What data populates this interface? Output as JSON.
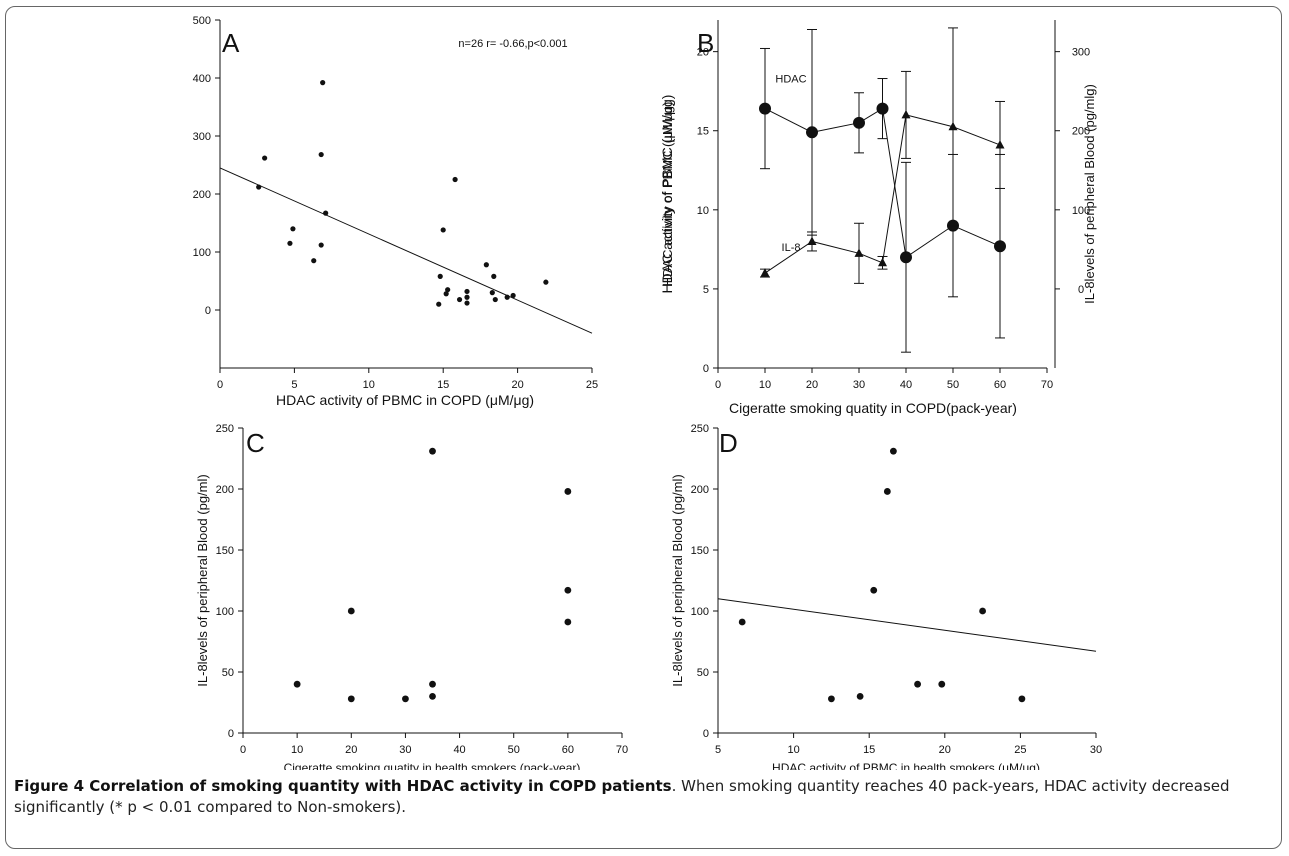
{
  "chart_data": [
    {
      "panel": "A",
      "type": "scatter",
      "annotation": "n=26 r= -0.66,p<0.001",
      "xlabel": "HDAC activity of PBMC  in COPD  (μM/μg)",
      "ylabel": "",
      "xlim": [
        0,
        25
      ],
      "ylim": [
        -100,
        500
      ],
      "xticks": [
        "0",
        "5",
        "10",
        "15",
        "20",
        "25"
      ],
      "yticks": [
        "0",
        "100",
        "200",
        "300",
        "400",
        "500"
      ],
      "ytick_values": [
        0,
        100,
        200,
        300,
        400,
        500
      ],
      "points": [
        [
          2.6,
          212
        ],
        [
          3.0,
          262
        ],
        [
          4.7,
          115
        ],
        [
          4.9,
          140
        ],
        [
          6.3,
          85
        ],
        [
          6.8,
          112
        ],
        [
          6.8,
          268
        ],
        [
          6.9,
          392
        ],
        [
          7.1,
          167
        ],
        [
          14.7,
          10
        ],
        [
          14.8,
          58
        ],
        [
          15.0,
          138
        ],
        [
          15.2,
          28
        ],
        [
          15.3,
          35
        ],
        [
          15.8,
          225
        ],
        [
          16.1,
          18
        ],
        [
          16.6,
          12
        ],
        [
          16.6,
          22
        ],
        [
          16.6,
          32
        ],
        [
          17.9,
          78
        ],
        [
          18.3,
          30
        ],
        [
          18.4,
          58
        ],
        [
          18.5,
          18
        ],
        [
          19.3,
          22
        ],
        [
          19.7,
          25
        ],
        [
          21.9,
          48
        ]
      ],
      "fit": [
        [
          0,
          245
        ],
        [
          25,
          -40
        ]
      ]
    },
    {
      "panel": "B",
      "type": "line",
      "xlabel": "Cigeratte smoking quatity in COPD(pack-year)",
      "ylabel": "HDAC activity of PBMC (μM/μg)",
      "ylabel_right": "IL-8levels of peripheral Blood (pg/mlg)",
      "xlim": [
        0,
        70
      ],
      "ylim": [
        0,
        22
      ],
      "ylim_right": [
        -100,
        340
      ],
      "xticks": [
        "0",
        "10",
        "20",
        "30",
        "40",
        "50",
        "60",
        "70"
      ],
      "yticks": [
        "0",
        "5",
        "10",
        "15",
        "20"
      ],
      "ytick_values": [
        0,
        5,
        10,
        15,
        20
      ],
      "yticks_right": [
        "0",
        "100",
        "200",
        "300"
      ],
      "ytick_values_right": [
        0,
        100,
        200,
        300
      ],
      "series": [
        {
          "name": "HDAC",
          "axis": "left",
          "marker": "circle",
          "points": [
            [
              10,
              16.4
            ],
            [
              20,
              14.9
            ],
            [
              30,
              15.5
            ],
            [
              35,
              16.4
            ],
            [
              40,
              7.0
            ],
            [
              50,
              9.0
            ],
            [
              60,
              7.7
            ]
          ],
          "errors": [
            3.8,
            6.5,
            1.9,
            1.9,
            6.0,
            4.5,
            5.8
          ]
        },
        {
          "name": "IL-8",
          "axis": "right",
          "marker": "triangle",
          "points": [
            [
              10,
              20
            ],
            [
              20,
              60
            ],
            [
              30,
              45
            ],
            [
              35,
              33
            ],
            [
              40,
              220
            ],
            [
              50,
              205
            ],
            [
              60,
              182
            ]
          ],
          "errors": [
            5,
            12,
            38,
            8,
            55,
            125,
            55
          ]
        }
      ]
    },
    {
      "panel": "C",
      "type": "scatter",
      "xlabel": "Cigeratte smoking quatity in health smokers (pack-year)",
      "ylabel": "IL-8levels of peripheral Blood (pg/ml)",
      "xlim": [
        0,
        70
      ],
      "ylim": [
        0,
        250
      ],
      "xticks": [
        "0",
        "10",
        "20",
        "30",
        "40",
        "50",
        "60",
        "70"
      ],
      "yticks": [
        "0",
        "50",
        "100",
        "150",
        "200",
        "250"
      ],
      "ytick_values": [
        0,
        50,
        100,
        150,
        200,
        250
      ],
      "points": [
        [
          10,
          40
        ],
        [
          20,
          28
        ],
        [
          20,
          100
        ],
        [
          30,
          28
        ],
        [
          35,
          30
        ],
        [
          35,
          40
        ],
        [
          35,
          231
        ],
        [
          60,
          91
        ],
        [
          60,
          117
        ],
        [
          60,
          198
        ]
      ]
    },
    {
      "panel": "D",
      "type": "scatter",
      "xlabel": "HDAC activity of PBMC  in health smokers  (μM/μg)",
      "ylabel": "IL-8levels of peripheral Blood (pg/ml)",
      "xlim": [
        5,
        30
      ],
      "ylim": [
        0,
        250
      ],
      "xticks": [
        "5",
        "10",
        "15",
        "20",
        "25",
        "30"
      ],
      "yticks": [
        "0",
        "50",
        "100",
        "150",
        "200",
        "250"
      ],
      "ytick_values": [
        0,
        50,
        100,
        150,
        200,
        250
      ],
      "points": [
        [
          6.6,
          91
        ],
        [
          12.5,
          28
        ],
        [
          14.4,
          30
        ],
        [
          15.3,
          117
        ],
        [
          16.2,
          198
        ],
        [
          16.6,
          231
        ],
        [
          18.2,
          40
        ],
        [
          19.8,
          40
        ],
        [
          22.5,
          100
        ],
        [
          25.1,
          28
        ]
      ],
      "fit": [
        [
          5,
          110
        ],
        [
          30,
          67
        ]
      ]
    }
  ],
  "caption": {
    "bold": "Figure 4 Correlation of smoking quantity with HDAC activity in COPD patients",
    "text": ". When smoking quantity reaches 40 pack-years, HDAC activity decreased significantly (* p < 0.01 compared to Non-smokers)."
  },
  "colors": {
    "ink": "#111111",
    "frame": "#666666"
  }
}
